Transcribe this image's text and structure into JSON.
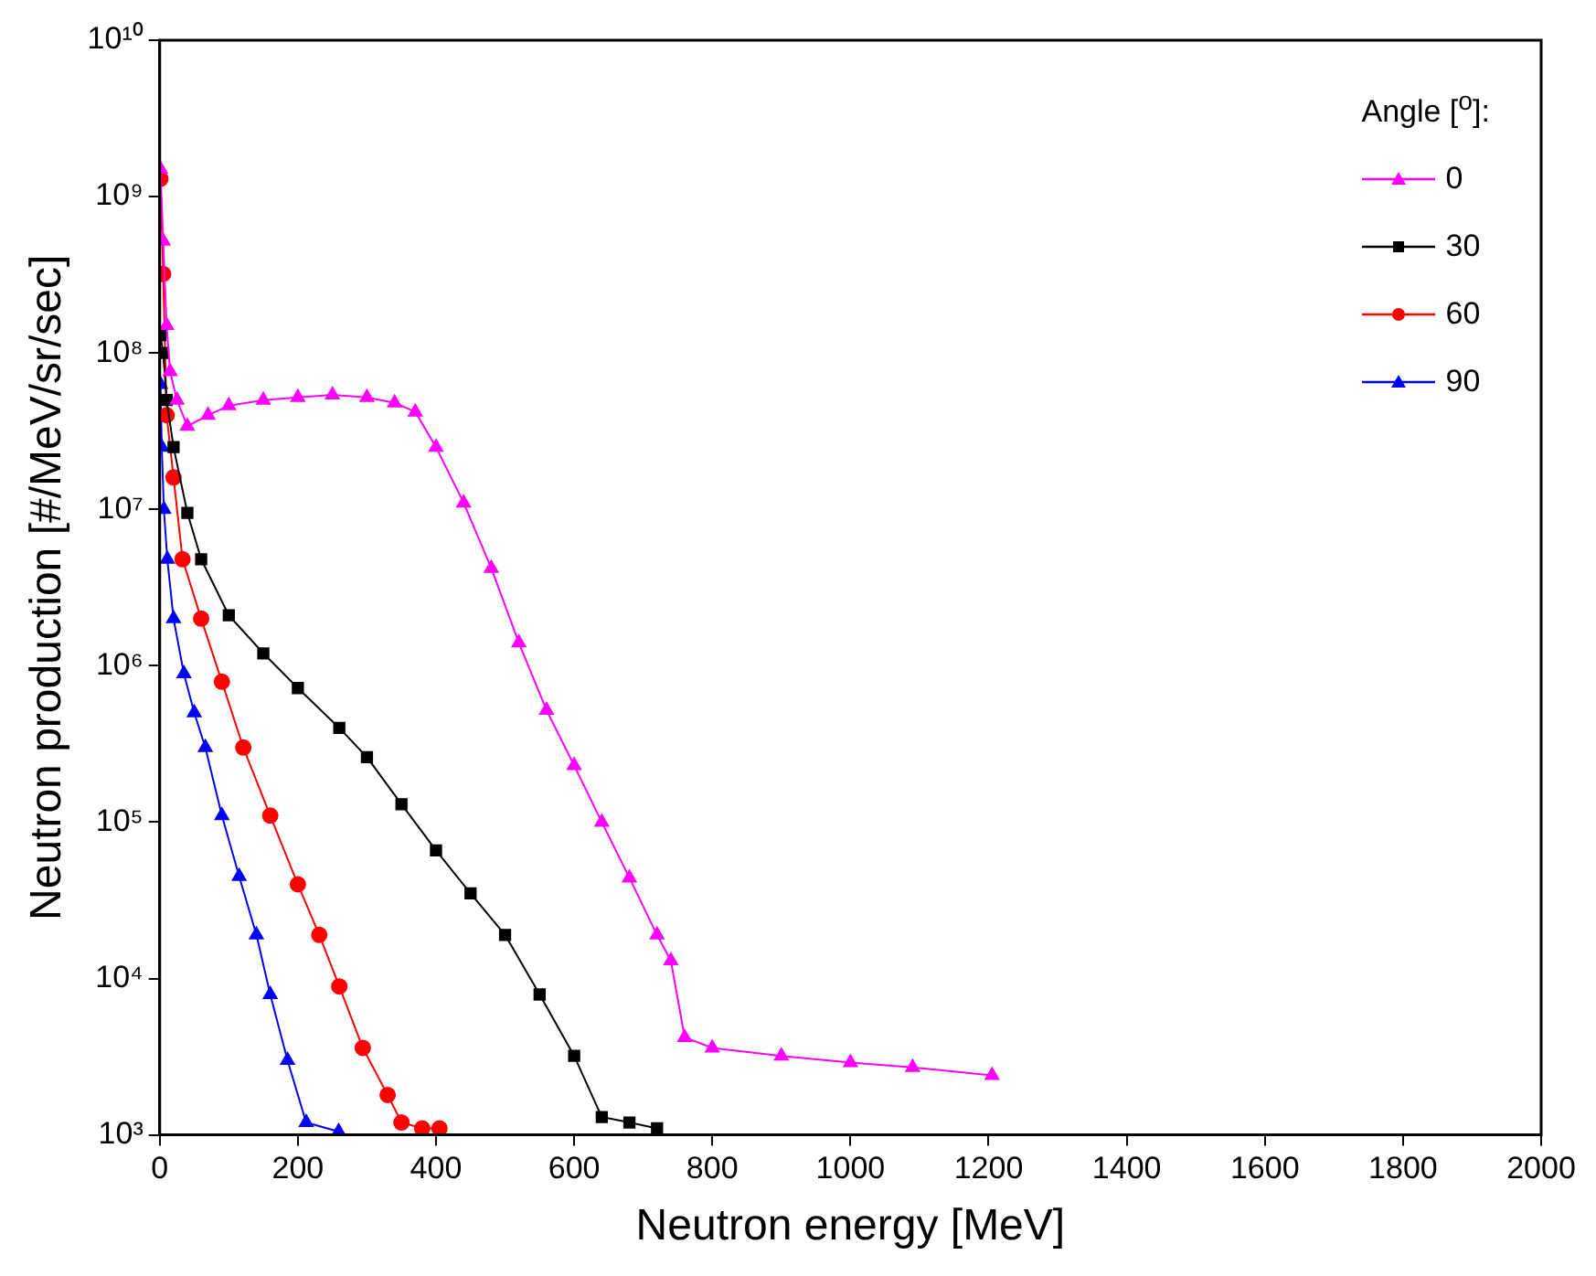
{
  "chart_data": {
    "type": "line",
    "xlabel": "Neutron energy [MeV]",
    "ylabel": "Neutron production [#/MeV/sr/sec]",
    "legend_title": "Angle [$^{o}$]:",
    "legend": "top right",
    "grid": false,
    "log": "y",
    "line_style": "solid",
    "xlim": [
      0,
      2000
    ],
    "xticks": [
      0,
      200,
      400,
      600,
      800,
      1000,
      1200,
      1400,
      1600,
      1800,
      2000
    ],
    "ylim": [
      1000,
      10000000000
    ],
    "yticks": [
      {
        "value": 1000,
        "label": "10³"
      },
      {
        "value": 10000,
        "label": "10⁴"
      },
      {
        "value": 100000,
        "label": "10⁵"
      },
      {
        "value": 1000000,
        "label": "10⁶"
      },
      {
        "value": 10000000,
        "label": "10⁷"
      },
      {
        "value": 100000000,
        "label": "10⁸"
      },
      {
        "value": 1000000000,
        "label": "10⁹"
      },
      {
        "value": 10000000000,
        "label": "10¹⁰"
      }
    ],
    "series": [
      {
        "name": "0",
        "color": "#ff00ff",
        "marker": "triangle",
        "x": [
          1,
          5,
          10,
          15,
          25,
          40,
          70,
          100,
          150,
          200,
          250,
          300,
          340,
          370,
          400,
          440,
          480,
          520,
          560,
          600,
          640,
          680,
          720,
          740,
          760,
          800,
          900,
          1000,
          1090,
          1205
        ],
        "values": [
          1500000000.0,
          520000000.0,
          150000000.0,
          76000000.0,
          50000000.0,
          34000000.0,
          40000000.0,
          46000000.0,
          50000000.0,
          52000000.0,
          54000000.0,
          52000000.0,
          48000000.0,
          42000000.0,
          25000000.0,
          11000000.0,
          4200000.0,
          1400000.0,
          520000.0,
          230000.0,
          100000.0,
          44000.0,
          19000.0,
          13000.0,
          4200.0,
          3600.0,
          3200.0,
          2900.0,
          2700.0,
          2400.0
        ]
      },
      {
        "name": "30",
        "color": "#000000",
        "marker": "square",
        "x": [
          1,
          5,
          10,
          20,
          40,
          60,
          100,
          150,
          200,
          260,
          300,
          350,
          400,
          450,
          500,
          550,
          600,
          640,
          680,
          720
        ],
        "values": [
          130000000.0,
          100000000.0,
          50000000.0,
          25000000.0,
          9500000.0,
          4800000.0,
          2100000.0,
          1200000.0,
          720000.0,
          400000.0,
          260000.0,
          130000.0,
          66000.0,
          35000.0,
          19000.0,
          7900.0,
          3200.0,
          1300.0,
          1200.0,
          1100.0
        ]
      },
      {
        "name": "60",
        "color": "#ff0000",
        "marker": "circle",
        "x": [
          1,
          5,
          10,
          20,
          33,
          60,
          90,
          121,
          160,
          200,
          231,
          260,
          294,
          330,
          350,
          380,
          405
        ],
        "values": [
          1300000000.0,
          320000000.0,
          40000000.0,
          16000000.0,
          4800000.0,
          2000000.0,
          790000.0,
          300000.0,
          110000.0,
          40000.0,
          19000.0,
          8900.0,
          3600.0,
          1800.0,
          1200.0,
          1100.0,
          1100.0
        ]
      },
      {
        "name": "90",
        "color": "#0000ff",
        "marker": "triangle",
        "x": [
          1,
          3,
          6,
          11,
          20,
          35,
          50,
          66,
          90,
          115,
          140,
          160,
          185,
          212,
          259
        ],
        "values": [
          63000000.0,
          25000000.0,
          10000000.0,
          4800000.0,
          2000000.0,
          890000.0,
          500000.0,
          300000.0,
          110000.0,
          45000.0,
          19000.0,
          7900.0,
          3000.0,
          1200.0,
          1050.0
        ]
      }
    ]
  }
}
